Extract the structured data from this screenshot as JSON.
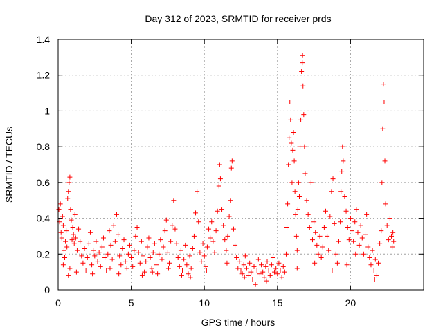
{
  "chart_data": {
    "type": "scatter",
    "title": "Day 312 of 2023, SRMTID for receiver prds",
    "xlabel": "GPS time / hours",
    "ylabel": "SRMTID / TECUs",
    "xlim": [
      0,
      25
    ],
    "ylim": [
      0,
      1.4
    ],
    "x_ticks": [
      0,
      5,
      10,
      15,
      20
    ],
    "x_tick_labels": [
      "0",
      "5",
      "10",
      "15",
      "20"
    ],
    "y_ticks": [
      0,
      0.2,
      0.4,
      0.6,
      0.8,
      1.0,
      1.2,
      1.4
    ],
    "y_tick_labels": [
      "0",
      "0.2",
      "0.4",
      "0.6",
      "0.8",
      "1",
      "1.2",
      "1.4"
    ],
    "grid": true,
    "marker": "+",
    "series": [
      {
        "name": "SRMTID",
        "color": "#ff0000",
        "points": [
          [
            0.05,
            0.45
          ],
          [
            0.1,
            0.38
          ],
          [
            0.15,
            0.48
          ],
          [
            0.2,
            0.32
          ],
          [
            0.25,
            0.29
          ],
          [
            0.3,
            0.41
          ],
          [
            0.35,
            0.36
          ],
          [
            0.4,
            0.22
          ],
          [
            0.45,
            0.18
          ],
          [
            0.5,
            0.27
          ],
          [
            0.55,
            0.33
          ],
          [
            0.6,
            0.24
          ],
          [
            0.65,
            0.51
          ],
          [
            0.7,
            0.55
          ],
          [
            0.75,
            0.6
          ],
          [
            0.8,
            0.63
          ],
          [
            0.85,
            0.45
          ],
          [
            0.9,
            0.39
          ],
          [
            0.95,
            0.28
          ],
          [
            1.0,
            0.35
          ],
          [
            0.7,
            0.08
          ],
          [
            0.8,
            0.12
          ],
          [
            1.05,
            0.31
          ],
          [
            1.1,
            0.26
          ],
          [
            1.15,
            0.42
          ],
          [
            1.2,
            0.29
          ],
          [
            1.3,
            0.22
          ],
          [
            1.4,
            0.34
          ],
          [
            1.5,
            0.27
          ],
          [
            1.6,
            0.19
          ],
          [
            1.7,
            0.15
          ],
          [
            1.8,
            0.23
          ],
          [
            1.9,
            0.11
          ],
          [
            2.0,
            0.18
          ],
          [
            2.1,
            0.26
          ],
          [
            2.2,
            0.32
          ],
          [
            2.3,
            0.14
          ],
          [
            2.4,
            0.22
          ],
          [
            2.5,
            0.19
          ],
          [
            2.6,
            0.27
          ],
          [
            2.7,
            0.16
          ],
          [
            2.8,
            0.21
          ],
          [
            2.9,
            0.13
          ],
          [
            3.0,
            0.24
          ],
          [
            3.1,
            0.29
          ],
          [
            3.2,
            0.18
          ],
          [
            3.3,
            0.11
          ],
          [
            3.4,
            0.2
          ],
          [
            3.5,
            0.33
          ],
          [
            3.6,
            0.25
          ],
          [
            3.7,
            0.17
          ],
          [
            3.8,
            0.36
          ],
          [
            3.9,
            0.27
          ],
          [
            4.0,
            0.42
          ],
          [
            4.1,
            0.31
          ],
          [
            4.2,
            0.19
          ],
          [
            4.3,
            0.14
          ],
          [
            4.4,
            0.23
          ],
          [
            4.5,
            0.28
          ],
          [
            4.6,
            0.16
          ],
          [
            4.7,
            0.12
          ],
          [
            4.8,
            0.2
          ],
          [
            4.9,
            0.25
          ],
          [
            5.0,
            0.18
          ],
          [
            5.1,
            0.13
          ],
          [
            5.2,
            0.22
          ],
          [
            5.3,
            0.3
          ],
          [
            5.4,
            0.35
          ],
          [
            5.5,
            0.21
          ],
          [
            5.6,
            0.15
          ],
          [
            5.7,
            0.27
          ],
          [
            5.8,
            0.19
          ],
          [
            5.9,
            0.1
          ],
          [
            6.0,
            0.16
          ],
          [
            6.1,
            0.24
          ],
          [
            6.2,
            0.29
          ],
          [
            6.3,
            0.18
          ],
          [
            6.4,
            0.12
          ],
          [
            6.5,
            0.21
          ],
          [
            6.6,
            0.26
          ],
          [
            6.7,
            0.14
          ],
          [
            6.8,
            0.09
          ],
          [
            6.9,
            0.2
          ],
          [
            7.0,
            0.28
          ],
          [
            7.1,
            0.17
          ],
          [
            7.2,
            0.24
          ],
          [
            7.3,
            0.33
          ],
          [
            7.4,
            0.39
          ],
          [
            7.5,
            0.21
          ],
          [
            7.6,
            0.15
          ],
          [
            7.7,
            0.27
          ],
          [
            7.8,
            0.36
          ],
          [
            7.9,
            0.5
          ],
          [
            8.0,
            0.34
          ],
          [
            8.1,
            0.26
          ],
          [
            8.2,
            0.18
          ],
          [
            8.3,
            0.13
          ],
          [
            8.4,
            0.22
          ],
          [
            8.5,
            0.11
          ],
          [
            8.6,
            0.17
          ],
          [
            8.7,
            0.25
          ],
          [
            8.8,
            0.14
          ],
          [
            8.9,
            0.09
          ],
          [
            9.0,
            0.19
          ],
          [
            9.1,
            0.12
          ],
          [
            9.2,
            0.23
          ],
          [
            9.3,
            0.3
          ],
          [
            9.4,
            0.43
          ],
          [
            9.5,
            0.55
          ],
          [
            9.6,
            0.38
          ],
          [
            9.7,
            0.21
          ],
          [
            9.8,
            0.16
          ],
          [
            9.9,
            0.26
          ],
          [
            10.0,
            0.19
          ],
          [
            10.1,
            0.13
          ],
          [
            10.2,
            0.24
          ],
          [
            10.3,
            0.34
          ],
          [
            10.4,
            0.29
          ],
          [
            10.5,
            0.38
          ],
          [
            10.6,
            0.27
          ],
          [
            10.7,
            0.21
          ],
          [
            10.8,
            0.33
          ],
          [
            10.9,
            0.44
          ],
          [
            11.0,
            0.58
          ],
          [
            11.05,
            0.7
          ],
          [
            11.1,
            0.62
          ],
          [
            11.2,
            0.45
          ],
          [
            11.3,
            0.36
          ],
          [
            11.4,
            0.28
          ],
          [
            11.5,
            0.22
          ],
          [
            11.6,
            0.3
          ],
          [
            11.7,
            0.41
          ],
          [
            11.8,
            0.5
          ],
          [
            11.85,
            0.68
          ],
          [
            11.9,
            0.72
          ],
          [
            12.0,
            0.34
          ],
          [
            12.1,
            0.25
          ],
          [
            12.2,
            0.18
          ],
          [
            12.3,
            0.12
          ],
          [
            12.4,
            0.16
          ],
          [
            12.5,
            0.11
          ],
          [
            12.6,
            0.09
          ],
          [
            12.7,
            0.14
          ],
          [
            12.8,
            0.19
          ],
          [
            12.9,
            0.12
          ],
          [
            13.0,
            0.08
          ],
          [
            13.1,
            0.15
          ],
          [
            13.2,
            0.1
          ],
          [
            13.3,
            0.06
          ],
          [
            13.4,
            0.13
          ],
          [
            13.5,
            0.03
          ],
          [
            13.6,
            0.11
          ],
          [
            13.7,
            0.17
          ],
          [
            13.8,
            0.09
          ],
          [
            13.9,
            0.14
          ],
          [
            14.0,
            0.1
          ],
          [
            14.1,
            0.07
          ],
          [
            14.2,
            0.13
          ],
          [
            14.3,
            0.16
          ],
          [
            14.4,
            0.11
          ],
          [
            14.5,
            0.08
          ],
          [
            14.6,
            0.14
          ],
          [
            14.7,
            0.18
          ],
          [
            14.8,
            0.1
          ],
          [
            14.9,
            0.12
          ],
          [
            15.0,
            0.09
          ],
          [
            15.1,
            0.15
          ],
          [
            15.2,
            0.11
          ],
          [
            15.3,
            0.07
          ],
          [
            15.4,
            0.13
          ],
          [
            15.5,
            0.1
          ],
          [
            15.6,
            0.2
          ],
          [
            15.65,
            0.35
          ],
          [
            15.7,
            0.48
          ],
          [
            15.75,
            0.7
          ],
          [
            15.8,
            0.85
          ],
          [
            15.85,
            1.05
          ],
          [
            15.9,
            0.95
          ],
          [
            15.95,
            0.82
          ],
          [
            16.0,
            0.6
          ],
          [
            16.05,
            0.78
          ],
          [
            16.1,
            0.88
          ],
          [
            16.15,
            0.72
          ],
          [
            16.2,
            0.55
          ],
          [
            16.25,
            0.42
          ],
          [
            16.3,
            0.3
          ],
          [
            16.35,
            0.22
          ],
          [
            16.4,
            0.45
          ],
          [
            16.45,
            0.6
          ],
          [
            16.5,
            0.52
          ],
          [
            16.55,
            0.8
          ],
          [
            16.6,
            0.95
          ],
          [
            16.65,
            1.22
          ],
          [
            16.7,
            1.27
          ],
          [
            16.72,
            1.31
          ],
          [
            16.75,
            1.14
          ],
          [
            16.8,
            0.98
          ],
          [
            16.85,
            0.8
          ],
          [
            16.9,
            0.65
          ],
          [
            17.0,
            0.5
          ],
          [
            17.1,
            0.42
          ],
          [
            17.2,
            0.35
          ],
          [
            17.3,
            0.6
          ],
          [
            17.4,
            0.28
          ],
          [
            17.5,
            0.38
          ],
          [
            17.6,
            0.32
          ],
          [
            17.7,
            0.25
          ],
          [
            17.8,
            0.2
          ],
          [
            17.9,
            0.3
          ],
          [
            18.0,
            0.18
          ],
          [
            18.1,
            0.24
          ],
          [
            18.2,
            0.35
          ],
          [
            18.3,
            0.44
          ],
          [
            18.4,
            0.3
          ],
          [
            18.5,
            0.22
          ],
          [
            18.6,
            0.41
          ],
          [
            18.7,
            0.55
          ],
          [
            18.8,
            0.62
          ],
          [
            18.9,
            0.37
          ],
          [
            19.0,
            0.2
          ],
          [
            19.1,
            0.15
          ],
          [
            19.2,
            0.27
          ],
          [
            19.3,
            0.38
          ],
          [
            19.35,
            0.55
          ],
          [
            19.4,
            0.66
          ],
          [
            19.45,
            0.8
          ],
          [
            19.5,
            0.72
          ],
          [
            19.6,
            0.52
          ],
          [
            19.7,
            0.44
          ],
          [
            19.8,
            0.35
          ],
          [
            19.9,
            0.28
          ],
          [
            20.0,
            0.4
          ],
          [
            20.1,
            0.33
          ],
          [
            20.2,
            0.27
          ],
          [
            20.3,
            0.38
          ],
          [
            20.4,
            0.45
          ],
          [
            20.5,
            0.32
          ],
          [
            20.6,
            0.25
          ],
          [
            20.7,
            0.36
          ],
          [
            20.8,
            0.29
          ],
          [
            20.9,
            0.2
          ],
          [
            21.0,
            0.31
          ],
          [
            21.1,
            0.42
          ],
          [
            21.2,
            0.24
          ],
          [
            21.3,
            0.18
          ],
          [
            21.4,
            0.14
          ],
          [
            21.5,
            0.22
          ],
          [
            21.6,
            0.11
          ],
          [
            21.7,
            0.17
          ],
          [
            21.8,
            0.08
          ],
          [
            21.9,
            0.15
          ],
          [
            22.0,
            0.26
          ],
          [
            22.1,
            0.33
          ],
          [
            22.15,
            0.6
          ],
          [
            22.2,
            0.9
          ],
          [
            22.25,
            1.15
          ],
          [
            22.3,
            1.05
          ],
          [
            22.35,
            0.72
          ],
          [
            22.4,
            0.48
          ],
          [
            22.5,
            0.36
          ],
          [
            22.6,
            0.28
          ],
          [
            22.7,
            0.4
          ],
          [
            22.8,
            0.3
          ],
          [
            22.85,
            0.24
          ],
          [
            22.9,
            0.32
          ],
          [
            22.95,
            0.27
          ],
          [
            1.25,
            0.1
          ],
          [
            2.35,
            0.09
          ],
          [
            3.55,
            0.12
          ],
          [
            5.75,
            0.08
          ],
          [
            6.45,
            0.1
          ],
          [
            7.55,
            0.12
          ],
          [
            8.45,
            0.08
          ],
          [
            10.15,
            0.11
          ],
          [
            11.55,
            0.15
          ],
          [
            12.75,
            0.07
          ],
          [
            16.35,
            0.12
          ],
          [
            17.55,
            0.15
          ],
          [
            18.75,
            0.11
          ],
          [
            20.35,
            0.2
          ],
          [
            0.35,
            0.14
          ],
          [
            4.15,
            0.09
          ],
          [
            9.05,
            0.07
          ],
          [
            14.25,
            0.05
          ],
          [
            19.75,
            0.14
          ],
          [
            21.65,
            0.06
          ]
        ]
      }
    ]
  }
}
